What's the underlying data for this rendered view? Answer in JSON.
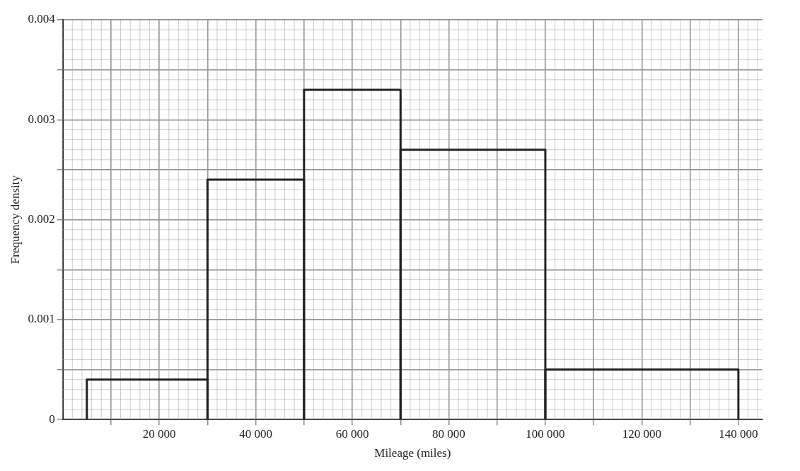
{
  "chart_data": {
    "type": "histogram",
    "xlabel": "Mileage (miles)",
    "ylabel": "Frequency density",
    "bins": [
      5000,
      30000,
      50000,
      70000,
      100000,
      140000
    ],
    "values": [
      0.0004,
      0.0024,
      0.0033,
      0.0027,
      0.0005
    ],
    "color": "#222222",
    "xlim": [
      0,
      145000
    ],
    "xticks": [
      {
        "value": 10000,
        "label": null
      },
      {
        "value": 20000,
        "label": "20 000"
      },
      {
        "value": 30000,
        "label": null
      },
      {
        "value": 40000,
        "label": "40 000"
      },
      {
        "value": 50000,
        "label": null
      },
      {
        "value": 60000,
        "label": "60 000"
      },
      {
        "value": 70000,
        "label": null
      },
      {
        "value": 80000,
        "label": "80 000"
      },
      {
        "value": 90000,
        "label": null
      },
      {
        "value": 100000,
        "label": "100 000"
      },
      {
        "value": 110000,
        "label": null
      },
      {
        "value": 120000,
        "label": "120 000"
      },
      {
        "value": 130000,
        "label": null
      },
      {
        "value": 140000,
        "label": "140 000"
      }
    ],
    "ylim": [
      0,
      0.004
    ],
    "yticks": [
      0,
      {
        "value": 0.0005,
        "label": null
      },
      0.001,
      {
        "value": 0.0015,
        "label": null
      },
      0.002,
      {
        "value": 0.0025,
        "label": null
      },
      0.003,
      {
        "value": 0.0035,
        "label": null
      },
      0.004
    ],
    "grid": true
  }
}
